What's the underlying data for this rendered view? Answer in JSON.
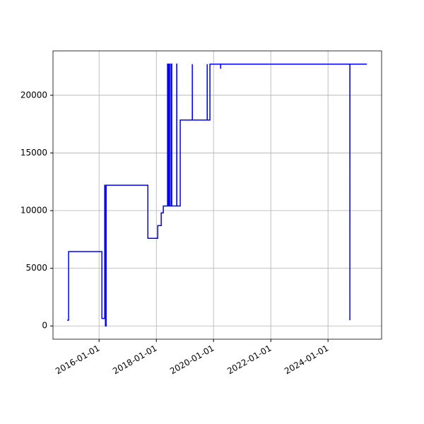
{
  "chart_data": {
    "type": "line",
    "color": "#0000ff",
    "grid": true,
    "x": [
      "2014-11-20",
      "2014-12-08",
      "2014-12-08",
      "2016-02-06",
      "2016-02-06",
      "2016-03-13",
      "2016-03-13",
      "2016-03-22",
      "2016-03-22",
      "2016-03-31",
      "2016-03-31",
      "2017-09-15",
      "2017-09-15",
      "2018-01-19",
      "2018-01-19",
      "2018-03-04",
      "2018-03-04",
      "2018-03-31",
      "2018-03-31",
      "2018-05-24",
      "2018-05-24",
      "2018-06-01",
      "2018-06-01",
      "2018-06-10",
      "2018-06-10",
      "2018-06-20",
      "2018-06-20",
      "2018-07-08",
      "2018-07-08",
      "2018-07-17",
      "2018-07-17",
      "2018-09-18",
      "2018-09-18",
      "2018-09-19",
      "2018-09-19",
      "2018-11-02",
      "2018-11-02",
      "2019-04-05",
      "2019-04-05",
      "2019-04-06",
      "2019-10-12",
      "2019-10-12",
      "2019-10-13",
      "2019-11-16",
      "2019-11-16",
      "2020-03-31",
      "2020-03-31",
      "2020-04-01",
      "2024-10-06",
      "2024-10-06",
      "2024-10-07",
      "2025-05-11"
    ],
    "values": [
      500,
      500,
      6450,
      6450,
      650,
      650,
      12200,
      12200,
      0,
      0,
      12200,
      12200,
      7600,
      7600,
      8700,
      8700,
      9800,
      9800,
      10400,
      10400,
      22700,
      22700,
      10400,
      10400,
      22700,
      22700,
      10400,
      10400,
      22700,
      22700,
      10400,
      10400,
      22700,
      22700,
      10400,
      10400,
      17850,
      17850,
      22700,
      17850,
      17850,
      22700,
      17850,
      17850,
      22700,
      22700,
      22300,
      22700,
      22700,
      500,
      22700,
      22700
    ],
    "xlim": [
      "2014-05-23",
      "2025-11-15"
    ],
    "xticks": [
      "2016-01-01",
      "2018-01-01",
      "2020-01-01",
      "2022-01-01",
      "2024-01-01"
    ],
    "ylim": [
      -1150,
      23850
    ],
    "yticks": [
      0,
      5000,
      10000,
      15000,
      20000
    ]
  }
}
